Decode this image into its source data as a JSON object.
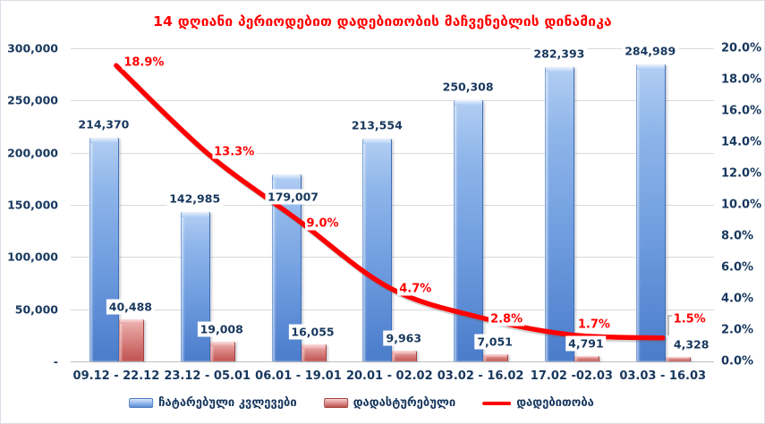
{
  "chart_data": {
    "type": "combo-bar-line",
    "title": "14 დღიანი პერიოდებით დადებითობის მაჩვენებლის დინამიკა",
    "categories": [
      "09.12 - 22.12",
      "23.12 - 05.01",
      "06.01 - 19.01",
      "20.01 - 02.02",
      "03.02 - 16.02",
      "17.02 -02.03",
      "03.03 - 16.03"
    ],
    "series": [
      {
        "name": "ჩატარებული კვლევები",
        "type": "bar",
        "axis": "left",
        "color": "#7FA8E2",
        "values": [
          214370,
          142985,
          179007,
          213554,
          250308,
          282393,
          284989
        ],
        "data_labels": [
          "214,370",
          "142,985",
          "179,007",
          "213,554",
          "250,308",
          "282,393",
          "284,989"
        ]
      },
      {
        "name": "დადასტურებული",
        "type": "bar",
        "axis": "left",
        "color": "#D07371",
        "values": [
          40488,
          19008,
          16055,
          9963,
          7051,
          4791,
          4328
        ],
        "data_labels": [
          "40,488",
          "19,008",
          "16,055",
          "9,963",
          "7,051",
          "4,791",
          "4,328"
        ]
      },
      {
        "name": "დადებითობა",
        "type": "line",
        "axis": "right",
        "color": "#FF0000",
        "values": [
          18.9,
          13.3,
          9.0,
          4.7,
          2.8,
          1.7,
          1.5
        ],
        "data_labels": [
          "18.9%",
          "13.3%",
          "9.0%",
          "4.7%",
          "2.8%",
          "1.7%",
          "1.5%"
        ]
      }
    ],
    "left_axis": {
      "min": 0,
      "max": 300000,
      "ticks": [
        "300,000",
        "250,000",
        "200,000",
        "150,000",
        "100,000",
        "50,000",
        "-"
      ]
    },
    "right_axis": {
      "min": 0,
      "max": 20,
      "ticks": [
        "20.0%",
        "18.0%",
        "16.0%",
        "14.0%",
        "12.0%",
        "10.0%",
        "8.0%",
        "6.0%",
        "4.0%",
        "2.0%",
        "0.0%"
      ]
    },
    "grid": "horizontal",
    "legend_position": "bottom"
  },
  "colors": {
    "title_red": "#FF0000",
    "axis_text": "#17375E",
    "gridline": "#D9D9D9",
    "bar_blue": "#7FA8E2",
    "bar_red": "#D07371",
    "line_red": "#FF0000"
  }
}
